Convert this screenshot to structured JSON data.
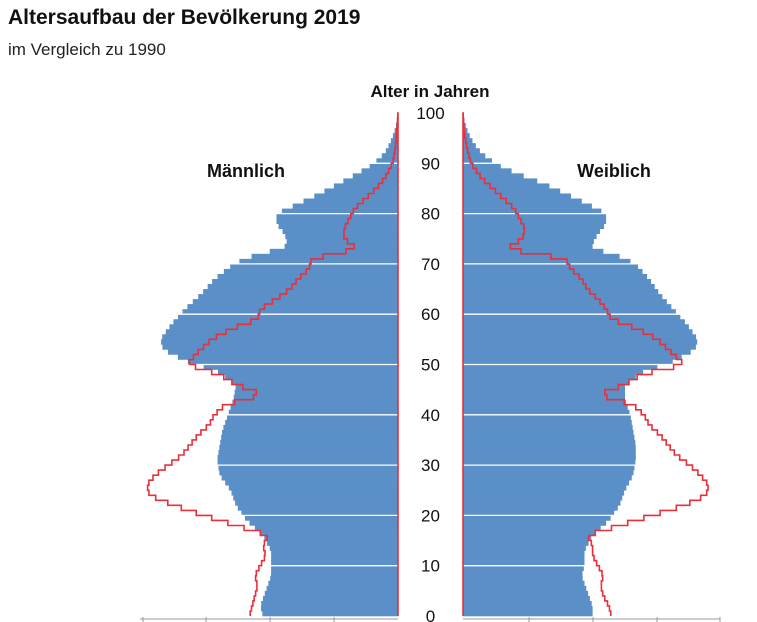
{
  "title": "Altersaufbau der Bevölkerung 2019",
  "subtitle": "im Vergleich zu 1990",
  "chart_data": {
    "type": "population-pyramid",
    "title": "Altersaufbau der Bevölkerung 2019",
    "subtitle": "im Vergleich zu 1990",
    "y_axis_label": "Alter in Jahren",
    "left_label": "Männlich",
    "right_label": "Weiblich",
    "y_ticks": [
      0,
      10,
      20,
      30,
      40,
      50,
      60,
      70,
      80,
      90,
      100
    ],
    "ylim": [
      0,
      100
    ],
    "series_colors": {
      "2019": "#5b8fc7",
      "1990": "#e8303a"
    },
    "male_2019": [
      [
        0,
        0.5
      ],
      [
        2,
        0.51
      ],
      [
        5,
        0.49
      ],
      [
        8,
        0.47
      ],
      [
        10,
        0.47
      ],
      [
        13,
        0.47
      ],
      [
        16,
        0.5
      ],
      [
        19,
        0.56
      ],
      [
        22,
        0.6
      ],
      [
        25,
        0.62
      ],
      [
        28,
        0.66
      ],
      [
        31,
        0.67
      ],
      [
        34,
        0.66
      ],
      [
        37,
        0.65
      ],
      [
        40,
        0.63
      ],
      [
        43,
        0.61
      ],
      [
        46,
        0.6
      ],
      [
        49,
        0.68
      ],
      [
        50,
        0.76
      ],
      [
        53,
        0.87
      ],
      [
        55,
        0.88
      ],
      [
        58,
        0.84
      ],
      [
        61,
        0.79
      ],
      [
        64,
        0.73
      ],
      [
        67,
        0.68
      ],
      [
        70,
        0.61
      ],
      [
        72,
        0.52
      ],
      [
        73,
        0.43
      ],
      [
        74,
        0.41
      ],
      [
        76,
        0.42
      ],
      [
        78,
        0.45
      ],
      [
        80,
        0.45
      ],
      [
        82,
        0.37
      ],
      [
        84,
        0.29
      ],
      [
        86,
        0.22
      ],
      [
        88,
        0.15
      ],
      [
        90,
        0.09
      ],
      [
        92,
        0.05
      ],
      [
        94,
        0.03
      ],
      [
        96,
        0.015
      ],
      [
        98,
        0.005
      ],
      [
        100,
        0.0
      ]
    ],
    "female_2019": [
      [
        0,
        0.48
      ],
      [
        2,
        0.48
      ],
      [
        5,
        0.46
      ],
      [
        8,
        0.44
      ],
      [
        10,
        0.45
      ],
      [
        13,
        0.45
      ],
      [
        16,
        0.48
      ],
      [
        19,
        0.54
      ],
      [
        22,
        0.58
      ],
      [
        25,
        0.6
      ],
      [
        28,
        0.63
      ],
      [
        31,
        0.64
      ],
      [
        34,
        0.64
      ],
      [
        37,
        0.63
      ],
      [
        40,
        0.62
      ],
      [
        43,
        0.6
      ],
      [
        46,
        0.6
      ],
      [
        49,
        0.68
      ],
      [
        50,
        0.76
      ],
      [
        53,
        0.86
      ],
      [
        55,
        0.87
      ],
      [
        58,
        0.83
      ],
      [
        61,
        0.78
      ],
      [
        64,
        0.73
      ],
      [
        67,
        0.69
      ],
      [
        70,
        0.64
      ],
      [
        72,
        0.56
      ],
      [
        73,
        0.48
      ],
      [
        74,
        0.48
      ],
      [
        76,
        0.5
      ],
      [
        78,
        0.53
      ],
      [
        80,
        0.53
      ],
      [
        82,
        0.46
      ],
      [
        84,
        0.38
      ],
      [
        86,
        0.3
      ],
      [
        88,
        0.2
      ],
      [
        90,
        0.12
      ],
      [
        92,
        0.07
      ],
      [
        94,
        0.04
      ],
      [
        96,
        0.02
      ],
      [
        98,
        0.007
      ],
      [
        100,
        0.0
      ]
    ],
    "male_1990": [
      [
        0,
        0.55
      ],
      [
        2,
        0.54
      ],
      [
        4,
        0.53
      ],
      [
        6,
        0.52
      ],
      [
        8,
        0.53
      ],
      [
        10,
        0.51
      ],
      [
        12,
        0.49
      ],
      [
        14,
        0.5
      ],
      [
        16,
        0.48
      ],
      [
        18,
        0.6
      ],
      [
        20,
        0.72
      ],
      [
        22,
        0.83
      ],
      [
        24,
        0.92
      ],
      [
        26,
        0.93
      ],
      [
        28,
        0.9
      ],
      [
        30,
        0.85
      ],
      [
        32,
        0.8
      ],
      [
        34,
        0.77
      ],
      [
        36,
        0.74
      ],
      [
        38,
        0.7
      ],
      [
        40,
        0.68
      ],
      [
        42,
        0.64
      ],
      [
        44,
        0.5
      ],
      [
        46,
        0.6
      ],
      [
        48,
        0.66
      ],
      [
        50,
        0.78
      ],
      [
        52,
        0.75
      ],
      [
        55,
        0.69
      ],
      [
        57,
        0.62
      ],
      [
        59,
        0.52
      ],
      [
        61,
        0.51
      ],
      [
        63,
        0.45
      ],
      [
        65,
        0.4
      ],
      [
        67,
        0.37
      ],
      [
        69,
        0.33
      ],
      [
        71,
        0.32
      ],
      [
        73,
        0.15
      ],
      [
        75,
        0.2
      ],
      [
        77,
        0.2
      ],
      [
        79,
        0.18
      ],
      [
        81,
        0.16
      ],
      [
        83,
        0.12
      ],
      [
        85,
        0.08
      ],
      [
        87,
        0.05
      ],
      [
        90,
        0.02
      ],
      [
        93,
        0.01
      ],
      [
        96,
        0.005
      ],
      [
        100,
        0.0
      ]
    ],
    "female_1990": [
      [
        0,
        0.55
      ],
      [
        2,
        0.54
      ],
      [
        4,
        0.52
      ],
      [
        6,
        0.51
      ],
      [
        8,
        0.52
      ],
      [
        10,
        0.5
      ],
      [
        12,
        0.48
      ],
      [
        14,
        0.48
      ],
      [
        16,
        0.46
      ],
      [
        18,
        0.58
      ],
      [
        20,
        0.7
      ],
      [
        22,
        0.82
      ],
      [
        24,
        0.9
      ],
      [
        26,
        0.91
      ],
      [
        28,
        0.88
      ],
      [
        30,
        0.84
      ],
      [
        32,
        0.79
      ],
      [
        34,
        0.76
      ],
      [
        36,
        0.73
      ],
      [
        38,
        0.69
      ],
      [
        40,
        0.67
      ],
      [
        42,
        0.63
      ],
      [
        44,
        0.5
      ],
      [
        46,
        0.6
      ],
      [
        48,
        0.66
      ],
      [
        50,
        0.82
      ],
      [
        52,
        0.78
      ],
      [
        55,
        0.72
      ],
      [
        57,
        0.65
      ],
      [
        59,
        0.55
      ],
      [
        61,
        0.53
      ],
      [
        63,
        0.5
      ],
      [
        65,
        0.46
      ],
      [
        67,
        0.44
      ],
      [
        69,
        0.4
      ],
      [
        71,
        0.38
      ],
      [
        73,
        0.16
      ],
      [
        75,
        0.22
      ],
      [
        77,
        0.23
      ],
      [
        79,
        0.21
      ],
      [
        81,
        0.19
      ],
      [
        83,
        0.15
      ],
      [
        85,
        0.11
      ],
      [
        87,
        0.07
      ],
      [
        90,
        0.03
      ],
      [
        93,
        0.015
      ],
      [
        96,
        0.005
      ],
      [
        100,
        0.0
      ]
    ]
  }
}
